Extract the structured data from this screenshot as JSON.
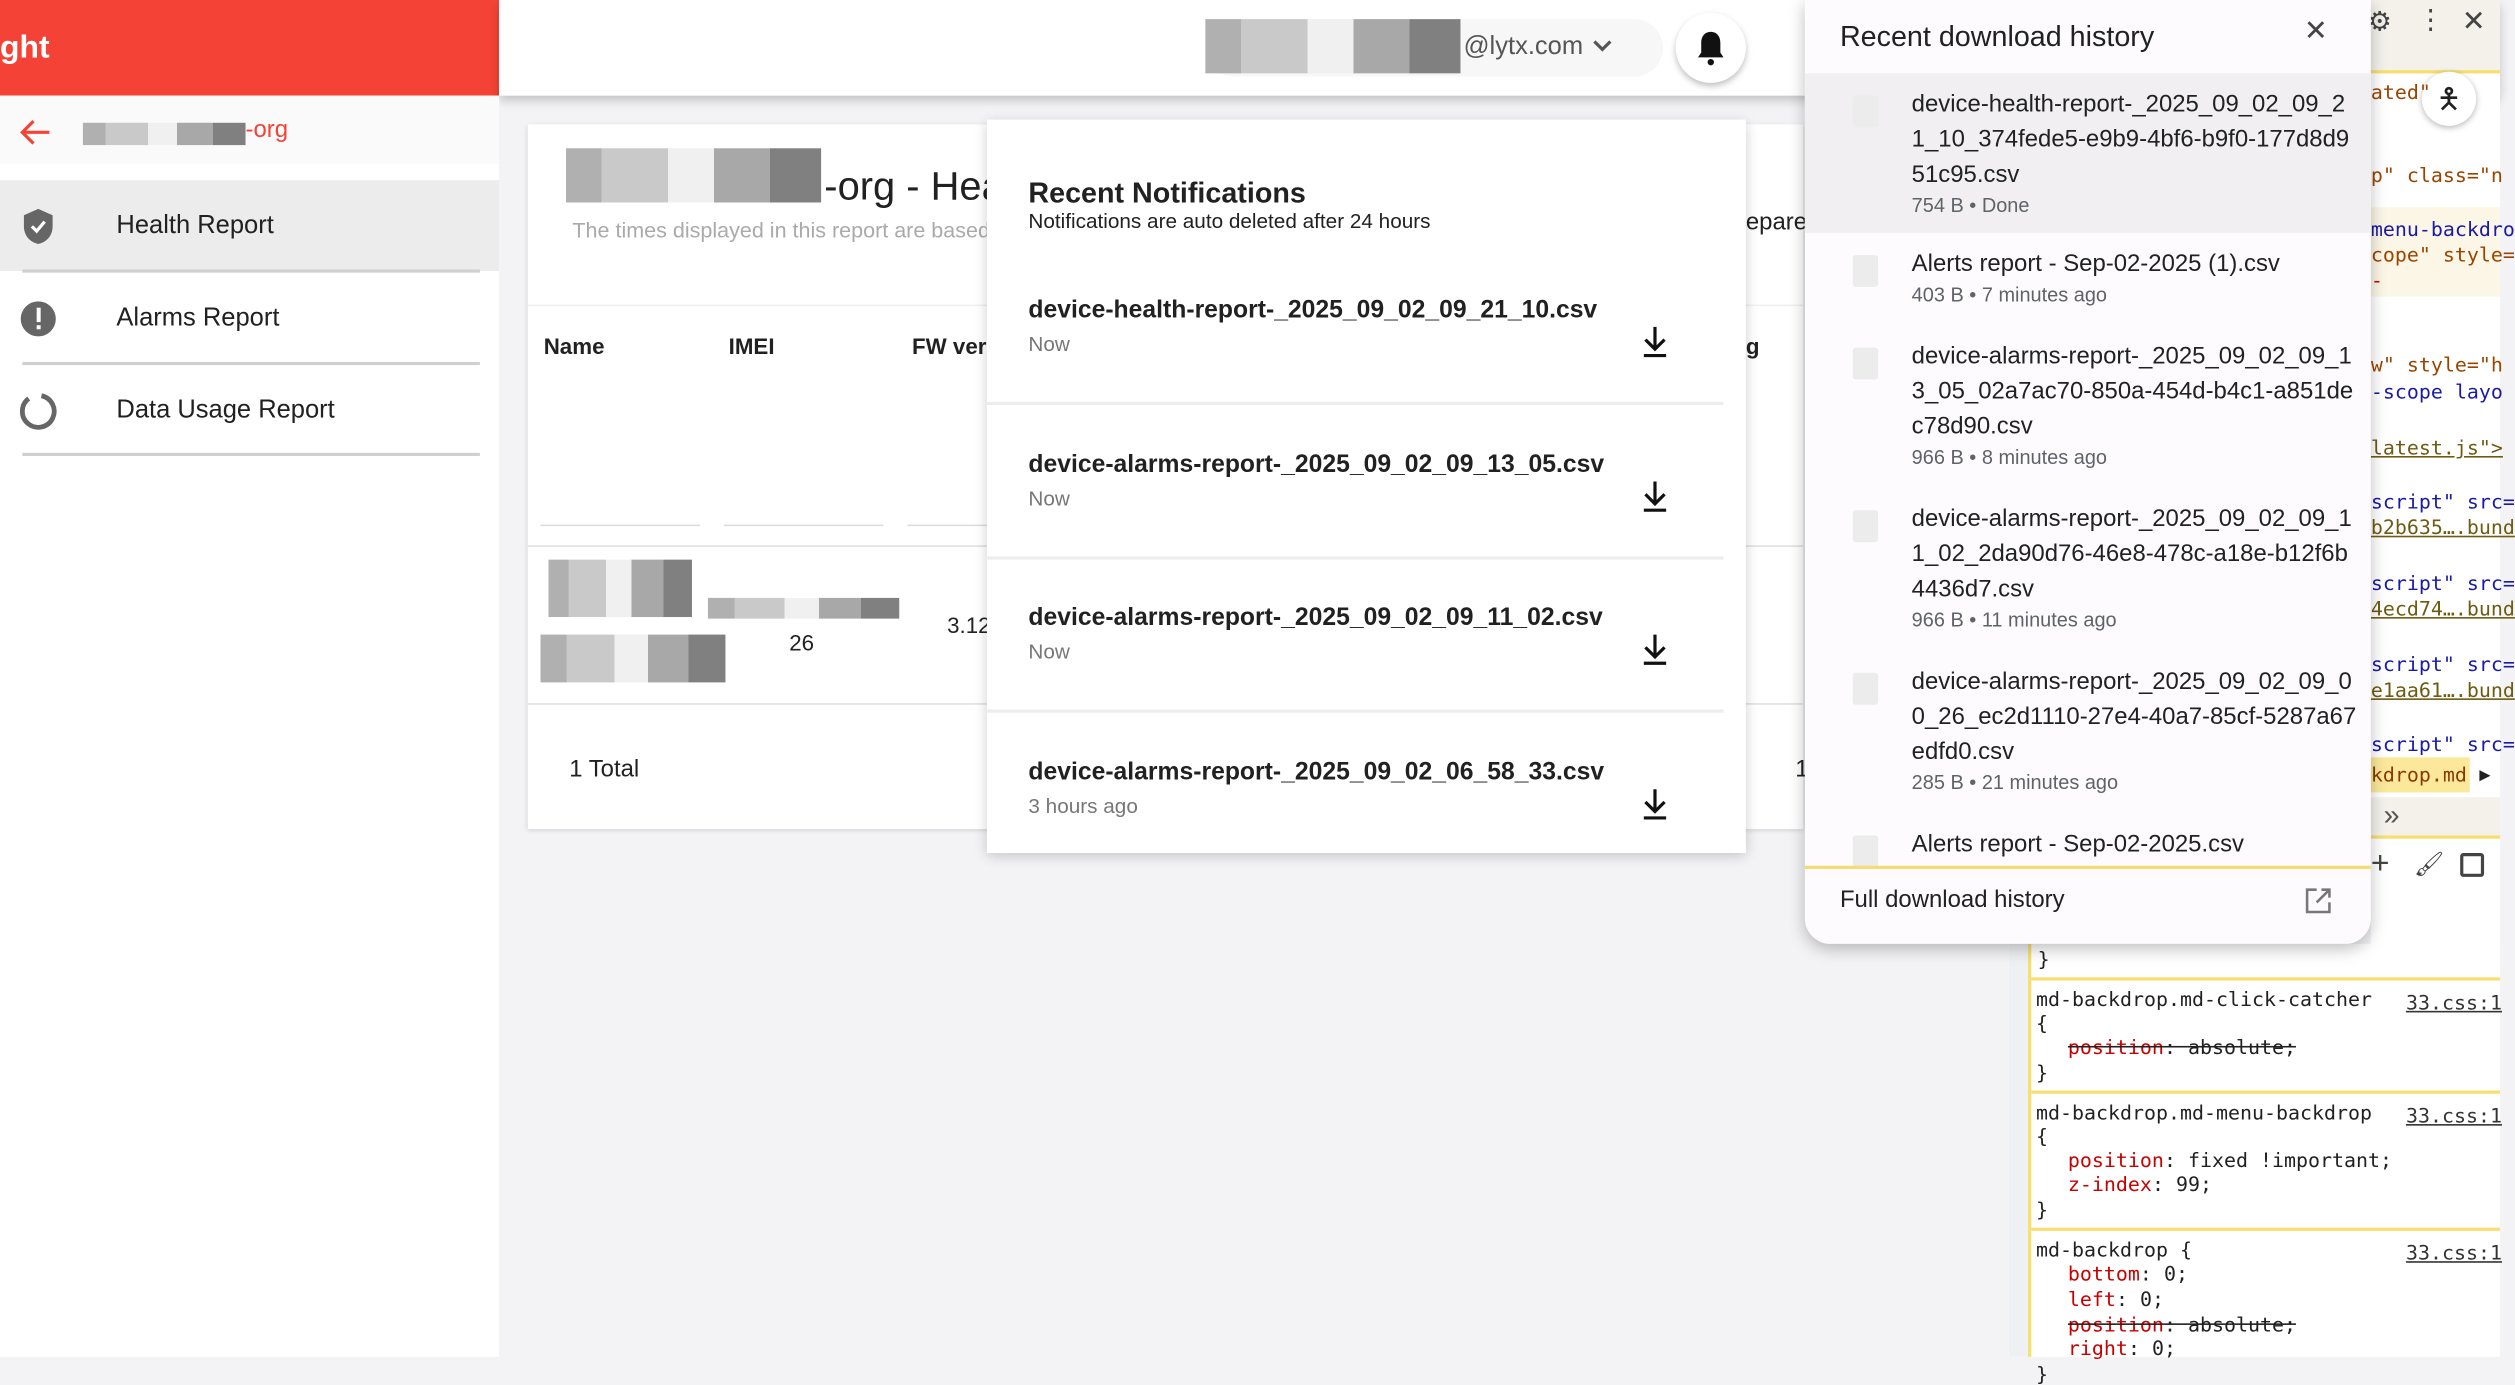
{
  "app": {
    "brand_fragment": "ght",
    "accent": "#f44336"
  },
  "header": {
    "user_email_suffix": "@lytx.com",
    "bell_icon": "bell-icon"
  },
  "sidebar": {
    "org_suffix": "-org",
    "items": [
      {
        "label": "Health Report",
        "icon": "shield-check-icon",
        "active": true
      },
      {
        "label": "Alarms Report",
        "icon": "alert-circle-icon"
      },
      {
        "label": "Data Usage Report",
        "icon": "donut-icon"
      }
    ]
  },
  "report": {
    "title_suffix": "-org - Hea",
    "subtitle": "The times displayed in this report are based",
    "columns": [
      "Name",
      "IMEI",
      "FW vers"
    ],
    "row": {
      "imei_fragment": "26",
      "fw_fragment": "3.12"
    },
    "total": "1 Total",
    "right_fragments": {
      "prepared": "epare",
      "col": "g",
      "total": "1"
    }
  },
  "notifications": {
    "title": "Recent Notifications",
    "subtitle": "Notifications are auto deleted after 24 hours",
    "items": [
      {
        "file": "device-health-report-_2025_09_02_09_21_10.csv",
        "time": "Now"
      },
      {
        "file": "device-alarms-report-_2025_09_02_09_13_05.csv",
        "time": "Now"
      },
      {
        "file": "device-alarms-report-_2025_09_02_09_11_02.csv",
        "time": "Now"
      },
      {
        "file": "device-alarms-report-_2025_09_02_06_58_33.csv",
        "time": "3 hours ago"
      }
    ]
  },
  "downloads": {
    "title": "Recent download history",
    "footer": "Full download history",
    "items": [
      {
        "name": "device-health-report-_2025_09_02_09_21_10_374fede5-e9b9-4bf6-b9f0-177d8d951c95.csv",
        "meta": "754 B • Done"
      },
      {
        "name": "Alerts report - Sep-02-2025 (1).csv",
        "meta": "403 B • 7 minutes ago"
      },
      {
        "name": "device-alarms-report-_2025_09_02_09_13_05_02a7ac70-850a-454d-b4c1-a851dec78d90.csv",
        "meta": "966 B • 8 minutes ago"
      },
      {
        "name": "device-alarms-report-_2025_09_02_09_11_02_2da90d76-46e8-478c-a18e-b12f6b4436d7.csv",
        "meta": "966 B • 11 minutes ago"
      },
      {
        "name": "device-alarms-report-_2025_09_02_09_00_26_ec2d1110-27e4-40a7-85cf-5287a67edfd0.csv",
        "meta": "285 B • 21 minutes ago"
      },
      {
        "name": "Alerts report - Sep-02-2025.csv",
        "meta": ""
      }
    ]
  },
  "devtools": {
    "elements": [
      "ated\"",
      "p\" class=\"n",
      "menu-backdro",
      "cope\" style=",
      "-",
      "w\" style=\"h",
      "-scope layo",
      "latest.js\">",
      "script\" src=",
      "b2b635….bund",
      "script\" src=",
      "4ecd74….bund",
      "script\" src=",
      "e1aa61….bund",
      "script\" src="
    ],
    "breadcrumb": "kdrop.md",
    "more": "»",
    "styles": [
      {
        "selector": "md-backdrop.md-click-catcher",
        "brace": "{",
        "source": "33.css:1",
        "props": [
          {
            "name": "position",
            "value": "absolute;",
            "overridden": true
          }
        ]
      },
      {
        "selector": "md-backdrop.md-menu-backdrop",
        "brace": "{",
        "source": "33.css:1",
        "props": [
          {
            "name": "position",
            "value": "fixed !important;"
          },
          {
            "name": "z-index",
            "value": "99;"
          }
        ]
      },
      {
        "selector": "md-backdrop {",
        "source": "33.css:1",
        "props": [
          {
            "name": "bottom",
            "value": "0;"
          },
          {
            "name": "left",
            "value": "0;"
          },
          {
            "name": "position",
            "value": "absolute;",
            "overridden": true
          },
          {
            "name": "right",
            "value": "0;"
          }
        ]
      }
    ],
    "close_brace": "}"
  }
}
